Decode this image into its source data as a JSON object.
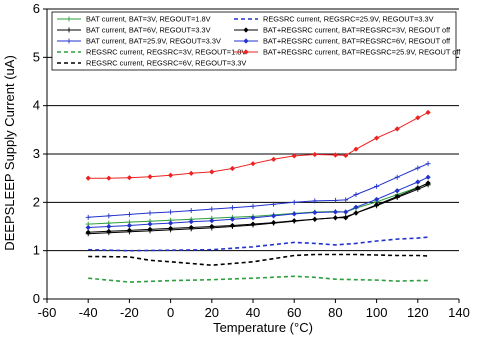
{
  "chart_data": {
    "type": "line",
    "title": "",
    "xlabel": "Temperature (°C)",
    "ylabel": "DEEPSLEEP Supply Current (uA)",
    "xlim": [
      -60,
      140
    ],
    "ylim": [
      0,
      6
    ],
    "xticks": [
      -60,
      -40,
      -20,
      0,
      20,
      40,
      60,
      80,
      100,
      120,
      140
    ],
    "yticks": [
      0,
      1,
      2,
      3,
      4,
      5,
      6
    ],
    "grid": "horizontal",
    "legend_placement": "top",
    "series": [
      {
        "name": "BAT current, BAT=3V, REGOUT=1.8V",
        "color": "#2e9e3e",
        "style": "solid-marker-plus",
        "x": [
          -40,
          -30,
          -20,
          -10,
          0,
          10,
          20,
          30,
          40,
          50,
          60,
          70,
          80,
          85,
          90,
          100,
          110,
          120,
          125
        ],
        "y": [
          1.55,
          1.57,
          1.59,
          1.61,
          1.63,
          1.65,
          1.67,
          1.69,
          1.71,
          1.74,
          1.77,
          1.8,
          1.81,
          1.8,
          1.88,
          2.01,
          2.16,
          2.31,
          2.38
        ]
      },
      {
        "name": "BAT current, BAT=6V, REGOUT=3.3V",
        "color": "#000000",
        "style": "solid-marker-plus",
        "x": [
          -40,
          -30,
          -20,
          -10,
          0,
          10,
          20,
          30,
          40,
          50,
          60,
          70,
          80,
          85,
          90,
          100,
          110,
          120,
          125
        ],
        "y": [
          1.35,
          1.37,
          1.39,
          1.41,
          1.43,
          1.45,
          1.47,
          1.5,
          1.53,
          1.57,
          1.61,
          1.65,
          1.68,
          1.7,
          1.78,
          1.93,
          2.1,
          2.27,
          2.36
        ]
      },
      {
        "name": "BAT current, BAT=25.9V, REGOUT=3.3V",
        "color": "#2233cc",
        "style": "solid-marker-plus",
        "x": [
          -40,
          -30,
          -20,
          -10,
          0,
          10,
          20,
          30,
          40,
          50,
          60,
          70,
          80,
          85,
          90,
          100,
          110,
          120,
          125
        ],
        "y": [
          1.69,
          1.72,
          1.75,
          1.78,
          1.8,
          1.83,
          1.86,
          1.89,
          1.92,
          1.96,
          2.0,
          2.03,
          2.04,
          2.05,
          2.16,
          2.33,
          2.52,
          2.71,
          2.8
        ]
      },
      {
        "name": "REGSRC current, REGSRC=3V, REGOUT=1.8V",
        "color": "#2e9e3e",
        "style": "dashed",
        "x": [
          -40,
          -20,
          0,
          20,
          40,
          60,
          70,
          80,
          90,
          100,
          110,
          120,
          125
        ],
        "y": [
          0.43,
          0.35,
          0.38,
          0.4,
          0.43,
          0.47,
          0.45,
          0.41,
          0.4,
          0.39,
          0.37,
          0.38,
          0.38
        ]
      },
      {
        "name": "REGSRC current, REGSRC=6V, REGOUT=3.3V",
        "color": "#000000",
        "style": "dashed",
        "x": [
          -40,
          -20,
          -10,
          0,
          20,
          40,
          60,
          70,
          80,
          90,
          100,
          110,
          120,
          125
        ],
        "y": [
          0.88,
          0.87,
          0.8,
          0.77,
          0.7,
          0.77,
          0.9,
          0.92,
          0.92,
          0.92,
          0.91,
          0.9,
          0.9,
          0.89
        ]
      },
      {
        "name": "REGSRC current, REGSRC=25.9V, REGOUT=3.3V",
        "color": "#2233cc",
        "style": "dashed",
        "x": [
          -40,
          -20,
          0,
          20,
          40,
          60,
          70,
          80,
          90,
          100,
          110,
          120,
          125
        ],
        "y": [
          1.02,
          1.0,
          1.01,
          1.02,
          1.08,
          1.17,
          1.15,
          1.12,
          1.15,
          1.2,
          1.24,
          1.26,
          1.28
        ]
      },
      {
        "name": "BAT+REGSRC current, BAT=REGSRC=3V, REGOUT off",
        "color": "#000000",
        "style": "solid-marker-diamond",
        "x": [
          -40,
          -30,
          -20,
          -10,
          0,
          10,
          20,
          30,
          40,
          50,
          60,
          70,
          80,
          85,
          90,
          100,
          110,
          120,
          125
        ],
        "y": [
          1.38,
          1.4,
          1.42,
          1.44,
          1.46,
          1.48,
          1.5,
          1.52,
          1.55,
          1.58,
          1.62,
          1.65,
          1.68,
          1.68,
          1.78,
          1.95,
          2.12,
          2.3,
          2.4
        ]
      },
      {
        "name": "BAT+REGSRC current, BAT=REGSRC=6V, REGOUT off",
        "color": "#2233cc",
        "style": "solid-marker-diamond",
        "x": [
          -40,
          -30,
          -20,
          -10,
          0,
          10,
          20,
          30,
          40,
          50,
          60,
          70,
          80,
          85,
          90,
          100,
          110,
          120,
          125
        ],
        "y": [
          1.48,
          1.5,
          1.52,
          1.55,
          1.57,
          1.6,
          1.62,
          1.65,
          1.68,
          1.72,
          1.76,
          1.79,
          1.8,
          1.8,
          1.9,
          2.06,
          2.24,
          2.42,
          2.52
        ]
      },
      {
        "name": "BAT+REGSRC current, BAT=REGSRC=25.9V, REGOUT off",
        "color": "#ee2222",
        "style": "solid-marker-diamond",
        "x": [
          -40,
          -30,
          -20,
          -10,
          0,
          10,
          20,
          30,
          40,
          50,
          60,
          70,
          80,
          85,
          90,
          100,
          110,
          120,
          125
        ],
        "y": [
          2.5,
          2.5,
          2.51,
          2.53,
          2.56,
          2.6,
          2.63,
          2.7,
          2.8,
          2.89,
          2.96,
          2.99,
          2.98,
          2.97,
          3.1,
          3.33,
          3.52,
          3.75,
          3.86
        ]
      }
    ]
  }
}
